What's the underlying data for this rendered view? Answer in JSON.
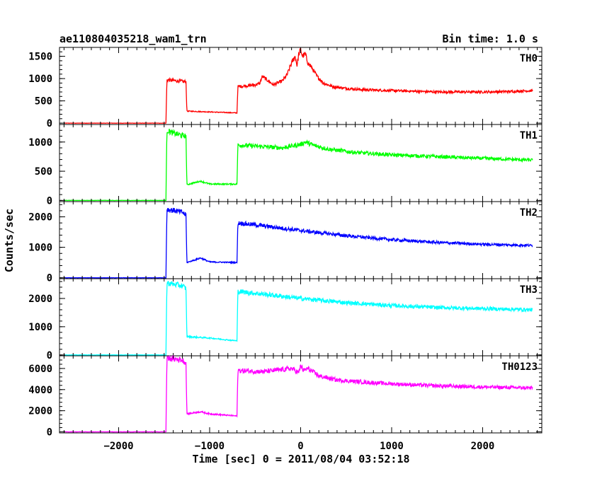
{
  "chart_data": {
    "type": "line",
    "title_left": "ae110804035218_wam1_trn",
    "title_right": "Bin time: 1.0 s",
    "xlabel": "Time [sec] 0 = 2011/08/04 03:52:18",
    "ylabel": "Counts/sec",
    "xlim": [
      -2650,
      2650
    ],
    "x_ticks": [
      -2000,
      -1000,
      0,
      1000,
      2000
    ],
    "grid": false,
    "panels": [
      {
        "name": "TH0",
        "color": "#ff0000",
        "ylim": [
          -30,
          1700
        ],
        "y_ticks": [
          0,
          500,
          1000,
          1500
        ],
        "x": [
          -2600,
          -1480,
          -1470,
          -1260,
          -1250,
          -700,
          -690,
          -500,
          -450,
          -420,
          -300,
          -200,
          -150,
          -100,
          -60,
          -40,
          -20,
          0,
          20,
          50,
          80,
          120,
          180,
          250,
          350,
          500,
          700,
          1000,
          1500,
          2000,
          2300,
          2550
        ],
        "y": [
          0,
          0,
          970,
          930,
          270,
          230,
          820,
          860,
          890,
          1050,
          860,
          950,
          1080,
          1350,
          1500,
          1300,
          1550,
          1650,
          1500,
          1550,
          1350,
          1250,
          1050,
          900,
          820,
          780,
          750,
          730,
          700,
          700,
          710,
          730
        ]
      },
      {
        "name": "TH1",
        "color": "#00ff00",
        "ylim": [
          -20,
          1300
        ],
        "y_ticks": [
          0,
          500,
          1000
        ],
        "x": [
          -2600,
          -1480,
          -1470,
          -1400,
          -1260,
          -1250,
          -1100,
          -1000,
          -700,
          -690,
          -400,
          -200,
          0,
          50,
          150,
          300,
          600,
          1000,
          1500,
          2000,
          2550
        ],
        "y": [
          0,
          0,
          1200,
          1150,
          1100,
          270,
          330,
          280,
          280,
          950,
          920,
          900,
          960,
          1000,
          940,
          880,
          820,
          780,
          750,
          720,
          690
        ]
      },
      {
        "name": "TH2",
        "color": "#0000ff",
        "ylim": [
          -30,
          2500
        ],
        "y_ticks": [
          0,
          1000,
          2000
        ],
        "x": [
          -2600,
          -1480,
          -1470,
          -1300,
          -1260,
          -1250,
          -1100,
          -1000,
          -700,
          -690,
          -400,
          0,
          500,
          1000,
          1500,
          2000,
          2550
        ],
        "y": [
          0,
          0,
          2250,
          2150,
          2050,
          500,
          650,
          520,
          500,
          1800,
          1700,
          1550,
          1380,
          1250,
          1160,
          1100,
          1060
        ]
      },
      {
        "name": "TH3",
        "color": "#00ffff",
        "ylim": [
          -30,
          2700
        ],
        "y_ticks": [
          0,
          1000,
          2000
        ],
        "x": [
          -2600,
          -1480,
          -1470,
          -1300,
          -1260,
          -1250,
          -1000,
          -700,
          -690,
          -400,
          0,
          500,
          1000,
          1500,
          2000,
          2550
        ],
        "y": [
          0,
          0,
          2550,
          2450,
          2350,
          650,
          600,
          500,
          2250,
          2150,
          2000,
          1850,
          1750,
          1680,
          1640,
          1600
        ]
      },
      {
        "name": "TH0123",
        "color": "#ff00ff",
        "ylim": [
          -100,
          7200
        ],
        "y_ticks": [
          0,
          2000,
          4000,
          6000
        ],
        "x": [
          -2600,
          -1480,
          -1470,
          -1300,
          -1260,
          -1250,
          -1100,
          -1000,
          -700,
          -690,
          -400,
          -100,
          -20,
          0,
          30,
          80,
          200,
          400,
          700,
          1000,
          1500,
          2000,
          2550
        ],
        "y": [
          0,
          0,
          7000,
          6800,
          6500,
          1700,
          1900,
          1700,
          1500,
          5800,
          5700,
          6000,
          5600,
          6300,
          5800,
          6000,
          5300,
          4900,
          4700,
          4550,
          4350,
          4250,
          4150
        ]
      }
    ]
  }
}
